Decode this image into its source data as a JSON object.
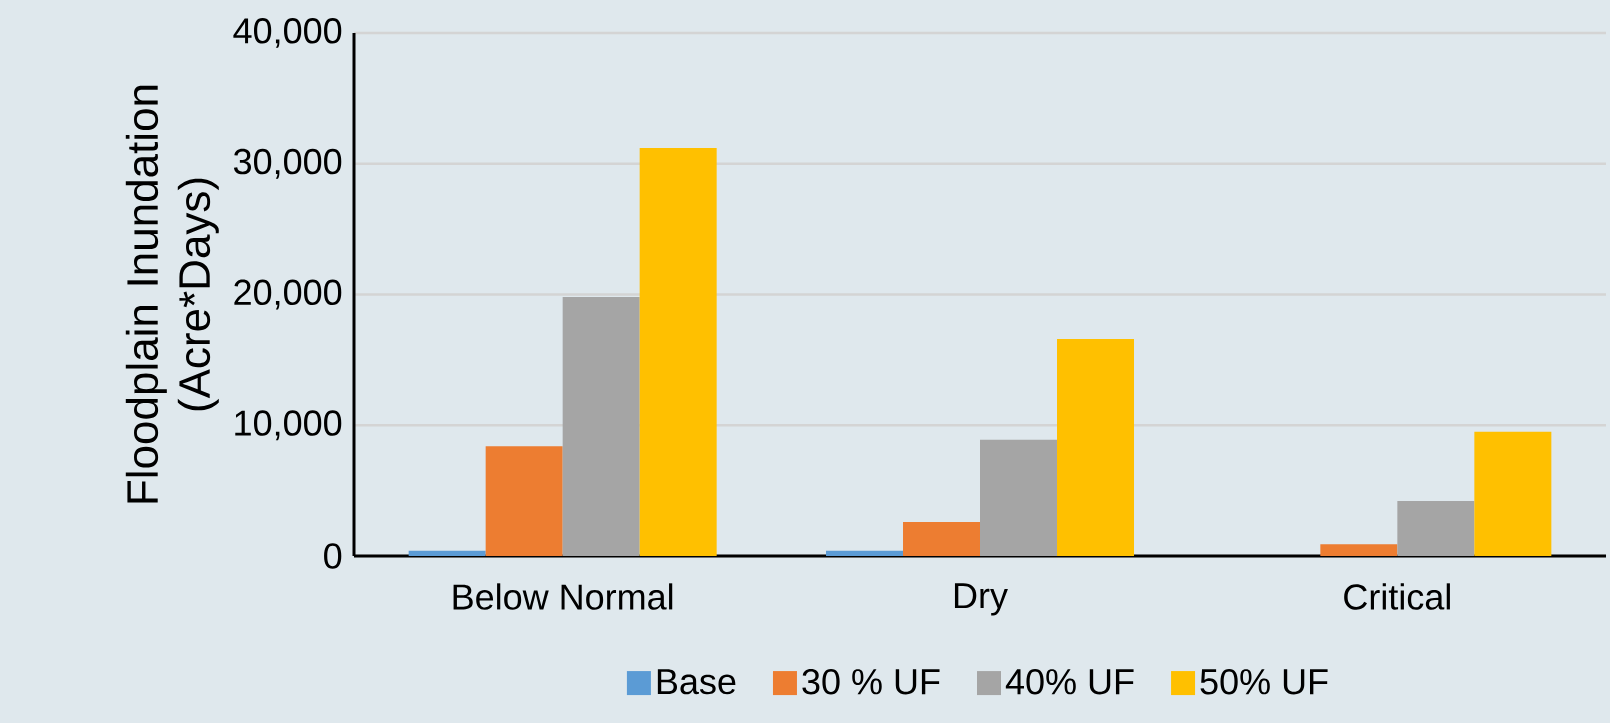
{
  "chart_data": {
    "type": "bar",
    "ylabel": "Floodplain Inundation (Acre*Days)",
    "categories": [
      "Below Normal",
      "Dry",
      "Critical"
    ],
    "series": [
      {
        "name": "Base",
        "color": "#5b9bd5",
        "values": [
          400,
          400,
          0
        ]
      },
      {
        "name": "30 % UF",
        "color": "#ed7d31",
        "values": [
          8400,
          2600,
          900
        ]
      },
      {
        "name": "40% UF",
        "color": "#a5a5a5",
        "values": [
          19800,
          8900,
          4200
        ]
      },
      {
        "name": "50% UF",
        "color": "#ffc000",
        "values": [
          31200,
          16600,
          9500
        ]
      }
    ],
    "ylim": [
      0,
      40000
    ],
    "yticks": [
      {
        "value": 0,
        "label": "0"
      },
      {
        "value": 10000,
        "label": "10,000"
      },
      {
        "value": 20000,
        "label": "20,000"
      },
      {
        "value": 30000,
        "label": "30,000"
      },
      {
        "value": 40000,
        "label": "40,000"
      }
    ],
    "grid": "y",
    "legend": "bottom"
  }
}
